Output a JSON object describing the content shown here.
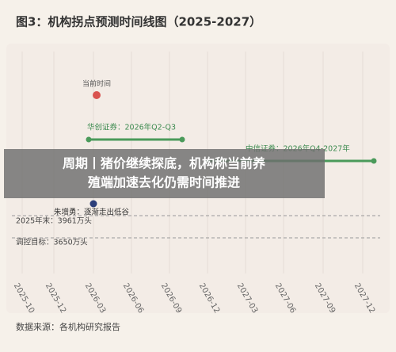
{
  "header": {
    "title": "图3：机构拐点预测时间线图（2025-2027）"
  },
  "timeline": {
    "current": {
      "label": "当前时间"
    },
    "forecasts": [
      {
        "label": "华创证券：2026年Q2-Q3"
      },
      {
        "label": "中信证券：2026年Q4-2027年"
      }
    ],
    "expert": {
      "label": "朱增勇：逐渐走出低谷"
    },
    "reference_lines": [
      {
        "label": "2025年末：3961万头"
      },
      {
        "label": "调控目标：3650万头"
      }
    ],
    "x_labels": [
      "2025-10",
      "2025-12",
      "2026-03",
      "2026-06",
      "2026-09",
      "2026-12",
      "2027-03",
      "2027-06",
      "2027-09",
      "2027-12"
    ]
  },
  "banner": {
    "lines": [
      "周期丨猪价继续探底，机构称当前养",
      "殖端加速去化仍需时间推进"
    ]
  },
  "footer": {
    "source": "数据来源：各机构研究报告"
  }
}
